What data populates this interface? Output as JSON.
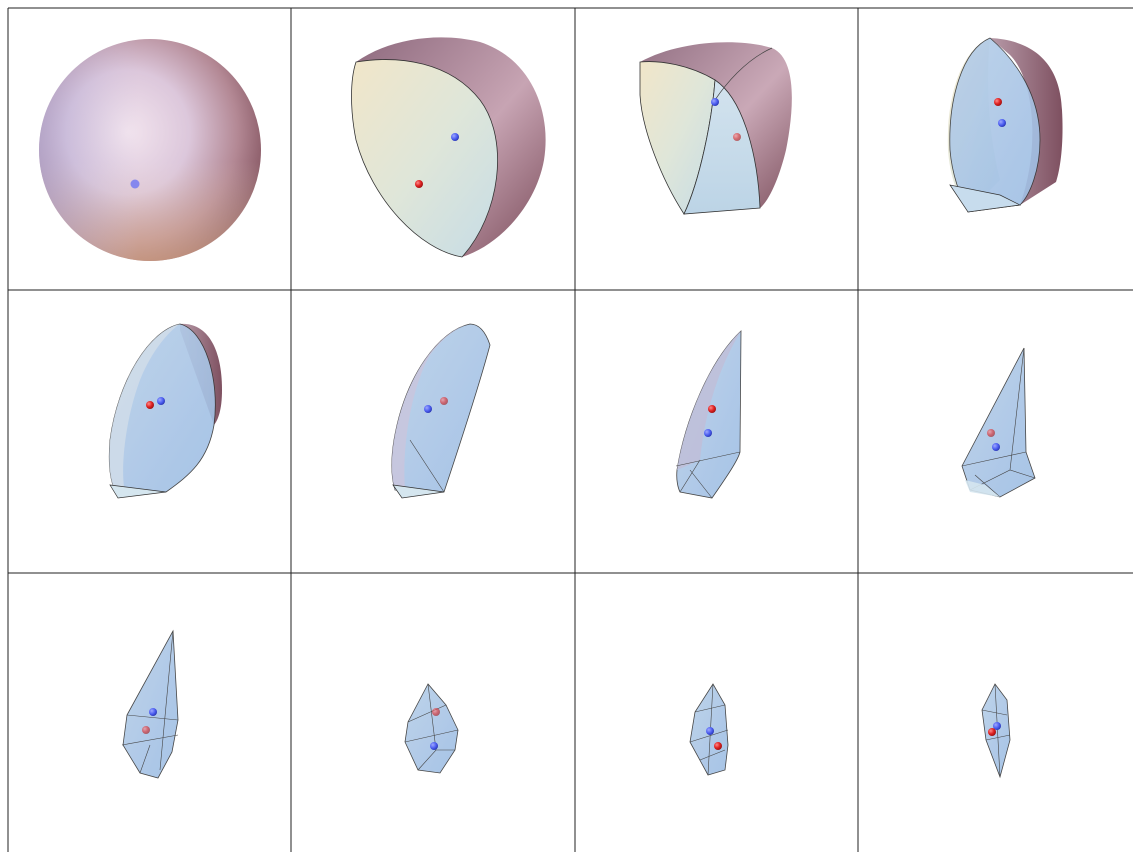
{
  "grid": {
    "rows": 3,
    "cols": 4
  },
  "colors": {
    "grid_line": "#222222",
    "solid_fill": "#a9c6e8",
    "solid_fill_light": "#c9dced",
    "solid_edge": "#333333",
    "sphere_pink": "#e7d3e3",
    "sphere_mauve": "#8a5c6e",
    "sphere_cream": "#f1e3cf",
    "marker_blue": "#4a5cf0",
    "marker_red": "#e02828"
  },
  "panels": [
    {
      "stage": 1,
      "shape": "full-sphere",
      "markers": [
        "blue"
      ]
    },
    {
      "stage": 2,
      "shape": "half-sphere",
      "markers": [
        "blue",
        "red"
      ]
    },
    {
      "stage": 3,
      "shape": "quarter-sphere",
      "markers": [
        "blue",
        "red"
      ]
    },
    {
      "stage": 4,
      "shape": "cut-wedge",
      "markers": [
        "red",
        "blue"
      ]
    },
    {
      "stage": 5,
      "shape": "cut-wedge",
      "markers": [
        "red",
        "blue"
      ]
    },
    {
      "stage": 6,
      "shape": "cut-wedge",
      "markers": [
        "blue",
        "red"
      ]
    },
    {
      "stage": 7,
      "shape": "sliver",
      "markers": [
        "red",
        "blue"
      ]
    },
    {
      "stage": 8,
      "shape": "polyhedron",
      "markers": [
        "red",
        "blue"
      ]
    },
    {
      "stage": 9,
      "shape": "polyhedron",
      "markers": [
        "blue",
        "red"
      ]
    },
    {
      "stage": 10,
      "shape": "polyhedron",
      "markers": [
        "red",
        "blue"
      ]
    },
    {
      "stage": 11,
      "shape": "polyhedron",
      "markers": [
        "blue",
        "red"
      ]
    },
    {
      "stage": 12,
      "shape": "polyhedron",
      "markers": [
        "blue",
        "red"
      ]
    }
  ]
}
